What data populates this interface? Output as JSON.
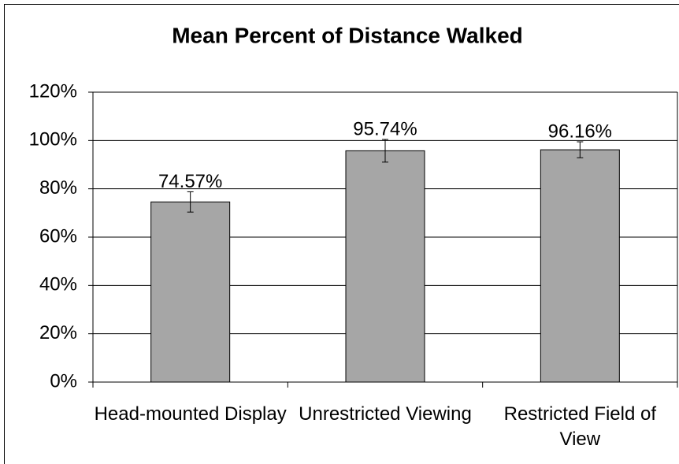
{
  "chart_data": {
    "type": "bar",
    "title": "Mean Percent of  Distance Walked",
    "categories": [
      "Head-mounted Display",
      "Unrestricted Viewing",
      "Restricted Field of View"
    ],
    "values": [
      74.57,
      95.74,
      96.16
    ],
    "value_labels": [
      "74.57%",
      "95.74%",
      "96.16%"
    ],
    "errors": [
      4.2,
      4.7,
      3.3
    ],
    "color": "#a6a6a6",
    "ylim": [
      0,
      120
    ],
    "yticks": [
      {
        "value": 0,
        "label": "0%"
      },
      {
        "value": 20,
        "label": "20%"
      },
      {
        "value": 40,
        "label": "40%"
      },
      {
        "value": 60,
        "label": "60%"
      },
      {
        "value": 80,
        "label": "80%"
      },
      {
        "value": 100,
        "label": "100%"
      },
      {
        "value": 120,
        "label": "120%"
      }
    ],
    "grid": true
  }
}
